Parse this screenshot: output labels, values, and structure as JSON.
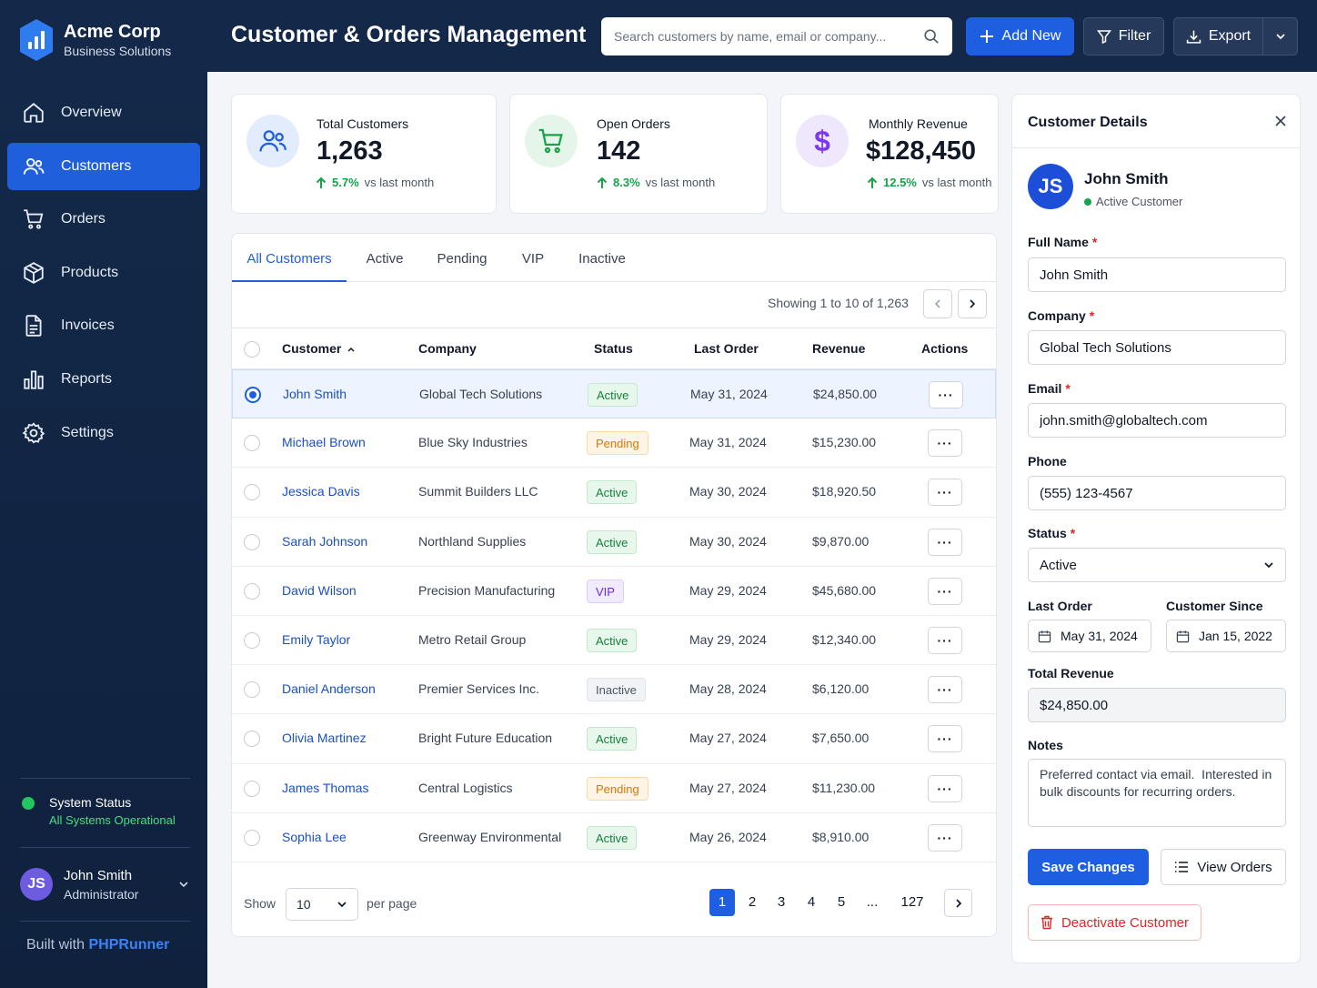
{
  "brand": {
    "name": "Acme Corp",
    "subtitle": "Business Solutions"
  },
  "nav": [
    {
      "label": "Overview",
      "icon": "home-icon"
    },
    {
      "label": "Customers",
      "icon": "users-icon",
      "active": true
    },
    {
      "label": "Orders",
      "icon": "cart-icon"
    },
    {
      "label": "Products",
      "icon": "box-icon"
    },
    {
      "label": "Invoices",
      "icon": "document-icon"
    },
    {
      "label": "Reports",
      "icon": "bar-chart-icon"
    },
    {
      "label": "Settings",
      "icon": "gear-icon"
    }
  ],
  "system_status": {
    "title": "System Status",
    "message": "All Systems Operational",
    "color": "#22c55e"
  },
  "current_user": {
    "initials": "JS",
    "name": "John Smith",
    "role": "Administrator"
  },
  "built_with": {
    "prefix": "Built with",
    "product": "PHPRunner"
  },
  "header": {
    "title": "Customer & Orders Management",
    "search_placeholder": "Search customers by name, email or company...",
    "add_label": "Add New",
    "filter_label": "Filter",
    "export_label": "Export"
  },
  "stats": [
    {
      "label": "Total Customers",
      "value": "1,263",
      "trend": "5.7%",
      "trend_suffix": "vs last month",
      "icon": "users-icon",
      "color": "#1d5fe0"
    },
    {
      "label": "Open Orders",
      "value": "142",
      "trend": "8.3%",
      "trend_suffix": "vs last month",
      "icon": "cart-icon",
      "color": "#16a34a"
    },
    {
      "label": "Monthly Revenue",
      "value": "$128,450",
      "trend": "12.5%",
      "trend_suffix": "vs last month",
      "icon": "dollar-icon",
      "color": "#7c3aed"
    }
  ],
  "tabs": [
    "All Customers",
    "Active",
    "Pending",
    "VIP",
    "Inactive"
  ],
  "table": {
    "showing": "Showing 1 to 10 of 1,263",
    "columns": [
      "Customer",
      "Company",
      "Status",
      "Last Order",
      "Revenue",
      "Actions"
    ],
    "rows": [
      {
        "name": "John Smith",
        "company": "Global Tech Solutions",
        "status": "Active",
        "last_order": "May 31, 2024",
        "revenue": "$24,850.00",
        "selected": true
      },
      {
        "name": "Michael Brown",
        "company": "Blue Sky Industries",
        "status": "Pending",
        "last_order": "May 31, 2024",
        "revenue": "$15,230.00"
      },
      {
        "name": "Jessica Davis",
        "company": "Summit Builders LLC",
        "status": "Active",
        "last_order": "May 30, 2024",
        "revenue": "$18,920.50"
      },
      {
        "name": "Sarah Johnson",
        "company": "Northland Supplies",
        "status": "Active",
        "last_order": "May 30, 2024",
        "revenue": "$9,870.00"
      },
      {
        "name": "David Wilson",
        "company": "Precision Manufacturing",
        "status": "VIP",
        "last_order": "May 29, 2024",
        "revenue": "$45,680.00"
      },
      {
        "name": "Emily Taylor",
        "company": "Metro Retail Group",
        "status": "Active",
        "last_order": "May 29, 2024",
        "revenue": "$12,340.00"
      },
      {
        "name": "Daniel Anderson",
        "company": "Premier Services Inc.",
        "status": "Inactive",
        "last_order": "May 28, 2024",
        "revenue": "$6,120.00"
      },
      {
        "name": "Olivia Martinez",
        "company": "Bright Future Education",
        "status": "Active",
        "last_order": "May 27, 2024",
        "revenue": "$7,650.00"
      },
      {
        "name": "James Thomas",
        "company": "Central Logistics",
        "status": "Pending",
        "last_order": "May 27, 2024",
        "revenue": "$11,230.00"
      },
      {
        "name": "Sophia Lee",
        "company": "Greenway Environmental",
        "status": "Active",
        "last_order": "May 26, 2024",
        "revenue": "$8,910.00"
      }
    ]
  },
  "pagination": {
    "show_label": "Show",
    "per_page": "10",
    "per_page_label": "per page",
    "pages": [
      "1",
      "2",
      "3",
      "4",
      "5"
    ],
    "ellipsis": "...",
    "last": "127",
    "current": "1"
  },
  "details": {
    "title": "Customer Details",
    "initials": "JS",
    "name": "John Smith",
    "status_text": "Active Customer",
    "full_name_label": "Full Name",
    "full_name": "John Smith",
    "company_label": "Company",
    "company": "Global Tech Solutions",
    "email_label": "Email",
    "email": "john.smith@globaltech.com",
    "phone_label": "Phone",
    "phone": "(555) 123-4567",
    "status_label": "Status",
    "status": "Active",
    "last_order_label": "Last Order",
    "last_order": "May 31, 2024",
    "since_label": "Customer Since",
    "since": "Jan 15, 2022",
    "revenue_label": "Total Revenue",
    "revenue": "$24,850.00",
    "notes_label": "Notes",
    "notes": "Preferred contact via email.  Interested in bulk discounts for recurring orders.",
    "required_mark": "*",
    "save_label": "Save Changes",
    "view_orders_label": "View Orders",
    "deactivate_label": "Deactivate Customer"
  }
}
